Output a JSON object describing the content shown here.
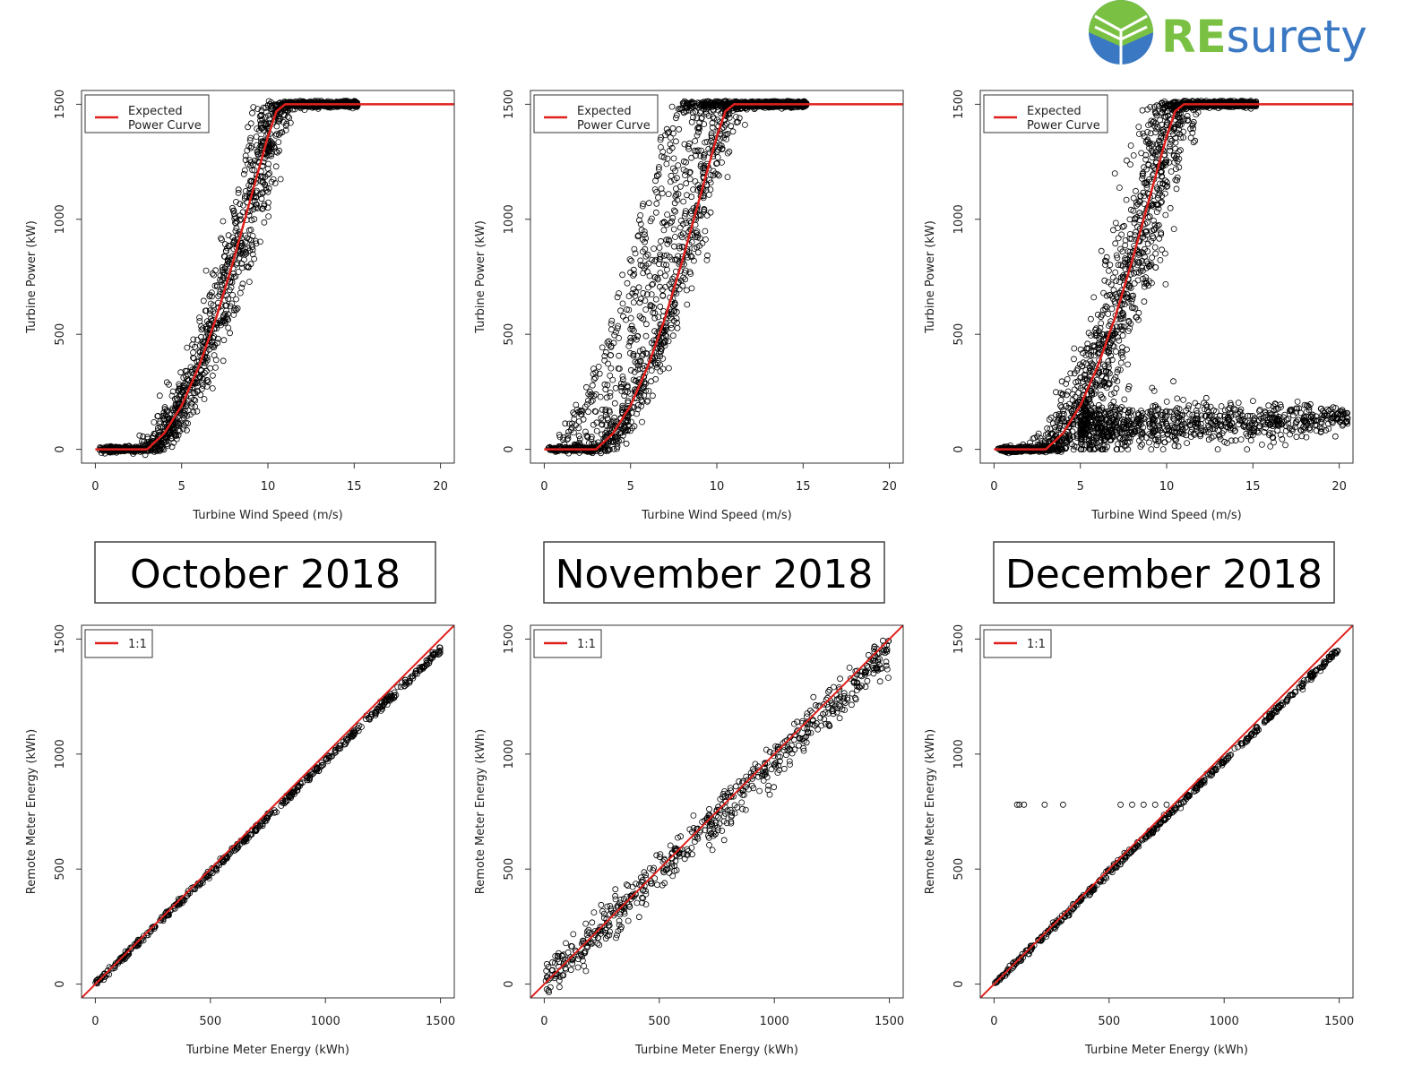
{
  "logo": {
    "text_bold": "RE",
    "text_regular": "surety",
    "colors": {
      "green": "#7ac143",
      "blue": "#3a78c3"
    }
  },
  "months": [
    "October 2018",
    "November 2018",
    "December 2018"
  ],
  "colors": {
    "curve": "#e0201c",
    "points": "#000000",
    "frame": "#333333"
  },
  "chart_data": [
    {
      "type": "scatter",
      "month": "October 2018",
      "xlabel": "Turbine Wind Speed (m/s)",
      "ylabel": "Turbine Power (kW)",
      "xlim": [
        -0.8,
        20.8
      ],
      "ylim": [
        -60,
        1560
      ],
      "xticks": [
        "0",
        "5",
        "10",
        "15",
        "20"
      ],
      "yticks": [
        "0",
        "500",
        "1000",
        "1500"
      ],
      "legend": [
        "Expected",
        "Power Curve"
      ],
      "legend_position": "top-left",
      "expected_curve": {
        "x": [
          0,
          3,
          4,
          5,
          6,
          7,
          8,
          9,
          10,
          10.5,
          11,
          20.8
        ],
        "y": [
          0,
          0,
          70,
          190,
          360,
          570,
          820,
          1090,
          1360,
          1470,
          1500,
          1500
        ]
      },
      "scatter": {
        "n": 1600,
        "bands": [
          {
            "shift": 0,
            "sd": 0.55,
            "weight": 1
          }
        ],
        "curtailed": null
      }
    },
    {
      "type": "scatter",
      "month": "November 2018",
      "xlabel": "Turbine Wind Speed (m/s)",
      "ylabel": "Turbine Power (kW)",
      "xlim": [
        -0.8,
        20.8
      ],
      "ylim": [
        -60,
        1560
      ],
      "xticks": [
        "0",
        "5",
        "10",
        "15",
        "20"
      ],
      "yticks": [
        "0",
        "500",
        "1000",
        "1500"
      ],
      "legend": [
        "Expected",
        "Power Curve"
      ],
      "legend_position": "top-left",
      "expected_curve": {
        "x": [
          0,
          3,
          4,
          5,
          6,
          7,
          8,
          9,
          10,
          10.5,
          11,
          20.8
        ],
        "y": [
          0,
          0,
          70,
          190,
          360,
          570,
          820,
          1090,
          1360,
          1470,
          1500,
          1500
        ]
      },
      "scatter": {
        "n": 1800,
        "bands": [
          {
            "shift": 0.1,
            "sd": 0.45,
            "weight": 0.55
          },
          {
            "shift": -1.3,
            "sd": 0.35,
            "weight": 0.2
          },
          {
            "shift": -2.6,
            "sd": 0.35,
            "weight": 0.25
          }
        ],
        "curtailed": null
      }
    },
    {
      "type": "scatter",
      "month": "December 2018",
      "xlabel": "Turbine Wind Speed (m/s)",
      "ylabel": "Turbine Power (kW)",
      "xlim": [
        -0.8,
        20.8
      ],
      "ylim": [
        -60,
        1560
      ],
      "xticks": [
        "0",
        "5",
        "10",
        "15",
        "20"
      ],
      "yticks": [
        "0",
        "500",
        "1000",
        "1500"
      ],
      "legend": [
        "Expected",
        "Power Curve"
      ],
      "legend_position": "top-left",
      "expected_curve": {
        "x": [
          0,
          3,
          4,
          5,
          6,
          7,
          8,
          9,
          10,
          10.5,
          11,
          20.8
        ],
        "y": [
          0,
          0,
          70,
          190,
          360,
          570,
          820,
          1090,
          1360,
          1470,
          1500,
          1500
        ]
      },
      "scatter": {
        "n": 1800,
        "bands": [
          {
            "shift": 0,
            "sd": 0.75,
            "weight": 1
          }
        ],
        "curtailed": {
          "n": 900,
          "x_range": [
            5,
            20.5
          ],
          "power_center": 120,
          "power_sd": 50
        }
      }
    },
    {
      "type": "scatter",
      "month": "October 2018",
      "xlabel": "Turbine Meter Energy (kWh)",
      "ylabel": "Remote Meter Energy (kWh)",
      "xlim": [
        -60,
        1560
      ],
      "ylim": [
        -60,
        1560
      ],
      "xticks": [
        "0",
        "500",
        "1000",
        "1500"
      ],
      "yticks": [
        "0",
        "500",
        "1000",
        "1500"
      ],
      "legend": [
        "1:1"
      ],
      "legend_position": "top-left",
      "reference_line": {
        "slope": 1,
        "intercept": 0
      },
      "scatter": {
        "n": 500,
        "slope": 0.97,
        "sd": 8,
        "outliers": []
      }
    },
    {
      "type": "scatter",
      "month": "November 2018",
      "xlabel": "Turbine Meter Energy (kWh)",
      "ylabel": "Remote Meter Energy (kWh)",
      "xlim": [
        -60,
        1560
      ],
      "ylim": [
        -60,
        1560
      ],
      "xticks": [
        "0",
        "500",
        "1000",
        "1500"
      ],
      "yticks": [
        "0",
        "500",
        "1000",
        "1500"
      ],
      "legend": [
        "1:1"
      ],
      "legend_position": "top-left",
      "reference_line": {
        "slope": 1,
        "intercept": 0
      },
      "scatter": {
        "n": 600,
        "slope": 0.97,
        "sd": 45,
        "outliers": []
      }
    },
    {
      "type": "scatter",
      "month": "December 2018",
      "xlabel": "Turbine Meter Energy (kWh)",
      "ylabel": "Remote Meter Energy (kWh)",
      "xlim": [
        -60,
        1560
      ],
      "ylim": [
        -60,
        1560
      ],
      "xticks": [
        "0",
        "500",
        "1000",
        "1500"
      ],
      "yticks": [
        "0",
        "500",
        "1000",
        "1500"
      ],
      "legend": [
        "1:1"
      ],
      "legend_position": "top-left",
      "reference_line": {
        "slope": 1,
        "intercept": 0
      },
      "scatter": {
        "n": 500,
        "slope": 0.97,
        "sd": 7,
        "outliers": [
          [
            100,
            780
          ],
          [
            110,
            780
          ],
          [
            130,
            780
          ],
          [
            220,
            780
          ],
          [
            300,
            780
          ],
          [
            550,
            780
          ],
          [
            600,
            780
          ],
          [
            650,
            780
          ],
          [
            700,
            780
          ],
          [
            750,
            780
          ]
        ]
      }
    }
  ]
}
